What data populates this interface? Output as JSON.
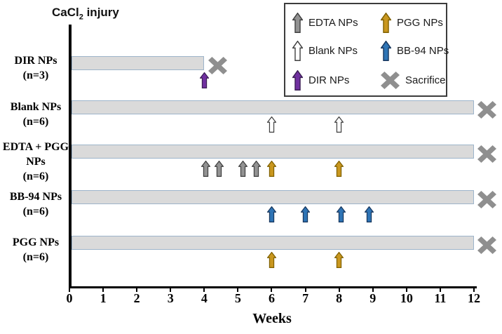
{
  "title": {
    "prefix": "CaCl",
    "sub": "2",
    "suffix": " injury"
  },
  "axis": {
    "label": "Weeks",
    "min": 0,
    "max": 12,
    "ticks": [
      0,
      1,
      2,
      3,
      4,
      5,
      6,
      7,
      8,
      9,
      10,
      11,
      12
    ]
  },
  "bar_style": {
    "fill": "#DADADA",
    "border": "#9DB4CA"
  },
  "markers": {
    "EDTA NPs": {
      "fill": "#929292",
      "stroke": "#404040"
    },
    "Blank NPs": {
      "fill": "#FFFFFF",
      "stroke": "#3F3F3F"
    },
    "DIR NPs": {
      "fill": "#7030A0",
      "stroke": "#3B1E54"
    },
    "PGG NPs": {
      "fill": "#C9971F",
      "stroke": "#7F6000"
    },
    "BB-94 NPs": {
      "fill": "#2E74B5",
      "stroke": "#17365D"
    },
    "sacrifice_color": "#8F8F8F"
  },
  "legend": {
    "items": [
      {
        "label": "EDTA NPs",
        "marker": "arrow",
        "np": "EDTA NPs"
      },
      {
        "label": "PGG NPs",
        "marker": "arrow",
        "np": "PGG NPs"
      },
      {
        "label": "Blank NPs",
        "marker": "arrow",
        "np": "Blank NPs"
      },
      {
        "label": "BB-94 NPs",
        "marker": "arrow",
        "np": "BB-94 NPs"
      },
      {
        "label": "DIR NPs",
        "marker": "arrow",
        "np": "DIR NPs"
      },
      {
        "label": "Sacrifice",
        "marker": "cross"
      }
    ]
  },
  "chart_data": {
    "type": "bar",
    "orientation": "horizontal-timeline",
    "title": "CaCl2 injury",
    "xlabel": "Weeks",
    "x_range": [
      0,
      12
    ],
    "x_ticks": [
      0,
      1,
      2,
      3,
      4,
      5,
      6,
      7,
      8,
      9,
      10,
      11,
      12
    ],
    "rows": [
      {
        "label_lines": [
          "DIR NPs",
          "(n=3)"
        ],
        "bar_start_week": 0,
        "bar_end_week": 4,
        "sacrifice": true,
        "events": [
          {
            "np": "DIR NPs",
            "week": 4
          }
        ]
      },
      {
        "label_lines": [
          "Blank NPs",
          "(n=6)"
        ],
        "bar_start_week": 0,
        "bar_end_week": 12,
        "sacrifice": true,
        "events": [
          {
            "np": "Blank NPs",
            "week": 6
          },
          {
            "np": "Blank NPs",
            "week": 8
          }
        ]
      },
      {
        "label_lines": [
          "EDTA + PGG",
          "NPs",
          "(n=6)"
        ],
        "bar_start_week": 0,
        "bar_end_week": 12,
        "sacrifice": true,
        "events": [
          {
            "np": "EDTA NPs",
            "week": 4.05
          },
          {
            "np": "EDTA NPs",
            "week": 4.45
          },
          {
            "np": "EDTA NPs",
            "week": 5.15
          },
          {
            "np": "EDTA NPs",
            "week": 5.55
          },
          {
            "np": "PGG NPs",
            "week": 6
          },
          {
            "np": "PGG NPs",
            "week": 8
          }
        ]
      },
      {
        "label_lines": [
          "BB-94 NPs",
          "(n=6)"
        ],
        "bar_start_week": 0,
        "bar_end_week": 12,
        "sacrifice": true,
        "events": [
          {
            "np": "BB-94 NPs",
            "week": 6
          },
          {
            "np": "BB-94 NPs",
            "week": 7
          },
          {
            "np": "BB-94 NPs",
            "week": 8.05
          },
          {
            "np": "BB-94 NPs",
            "week": 8.9
          }
        ]
      },
      {
        "label_lines": [
          "PGG NPs",
          "(n=6)"
        ],
        "bar_start_week": 0,
        "bar_end_week": 12,
        "sacrifice": true,
        "events": [
          {
            "np": "PGG NPs",
            "week": 6
          },
          {
            "np": "PGG NPs",
            "week": 8
          }
        ]
      }
    ]
  }
}
